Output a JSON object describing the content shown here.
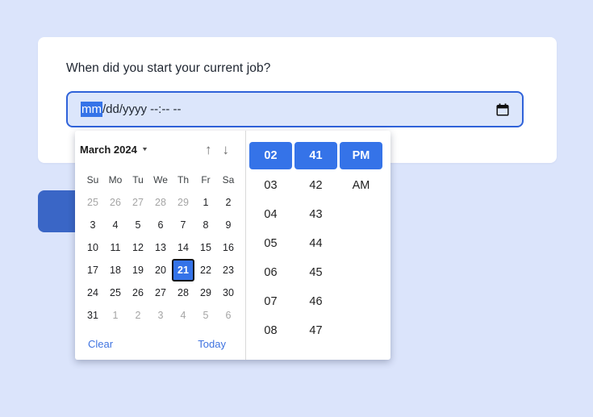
{
  "card": {
    "question": "When did you start your current job?"
  },
  "datetime_input": {
    "selected_segment": "mm",
    "rest_text": "/dd/yyyy --:-- --"
  },
  "icons": {
    "dropdown": "▼",
    "prev_month": "↑",
    "next_month": "↓",
    "calendar": "calendar-icon"
  },
  "picker": {
    "month_label": "March 2024",
    "weekdays": [
      "Su",
      "Mo",
      "Tu",
      "We",
      "Th",
      "Fr",
      "Sa"
    ],
    "days": [
      {
        "label": "25",
        "muted": true
      },
      {
        "label": "26",
        "muted": true
      },
      {
        "label": "27",
        "muted": true
      },
      {
        "label": "28",
        "muted": true
      },
      {
        "label": "29",
        "muted": true
      },
      {
        "label": "1"
      },
      {
        "label": "2"
      },
      {
        "label": "3"
      },
      {
        "label": "4"
      },
      {
        "label": "5"
      },
      {
        "label": "6"
      },
      {
        "label": "7"
      },
      {
        "label": "8"
      },
      {
        "label": "9"
      },
      {
        "label": "10"
      },
      {
        "label": "11"
      },
      {
        "label": "12"
      },
      {
        "label": "13"
      },
      {
        "label": "14"
      },
      {
        "label": "15"
      },
      {
        "label": "16"
      },
      {
        "label": "17"
      },
      {
        "label": "18"
      },
      {
        "label": "19"
      },
      {
        "label": "20"
      },
      {
        "label": "21",
        "selected": true
      },
      {
        "label": "22"
      },
      {
        "label": "23"
      },
      {
        "label": "24"
      },
      {
        "label": "25"
      },
      {
        "label": "26"
      },
      {
        "label": "27"
      },
      {
        "label": "28"
      },
      {
        "label": "29"
      },
      {
        "label": "30"
      },
      {
        "label": "31"
      },
      {
        "label": "1",
        "muted": true
      },
      {
        "label": "2",
        "muted": true
      },
      {
        "label": "3",
        "muted": true
      },
      {
        "label": "4",
        "muted": true
      },
      {
        "label": "5",
        "muted": true
      },
      {
        "label": "6",
        "muted": true
      }
    ],
    "selected_day": "21",
    "footer": {
      "clear": "Clear",
      "today": "Today"
    },
    "time_columns": [
      {
        "name": "hour",
        "items": [
          "02",
          "03",
          "04",
          "05",
          "06",
          "07",
          "08"
        ],
        "selected_index": 0
      },
      {
        "name": "minute",
        "items": [
          "41",
          "42",
          "43",
          "44",
          "45",
          "46",
          "47"
        ],
        "selected_index": 0
      },
      {
        "name": "meridiem",
        "items": [
          "PM",
          "AM"
        ],
        "selected_index": 0
      }
    ],
    "selected_time": {
      "hour": "02",
      "minute": "41",
      "meridiem": "PM"
    }
  },
  "colors": {
    "page_bg": "#dbe4fb",
    "accent_blue": "#3573e8",
    "input_border": "#2f62d9",
    "input_bg": "#dce6fb",
    "link_blue": "#3f73e0",
    "hidden_button_blue": "#3a66c6"
  }
}
